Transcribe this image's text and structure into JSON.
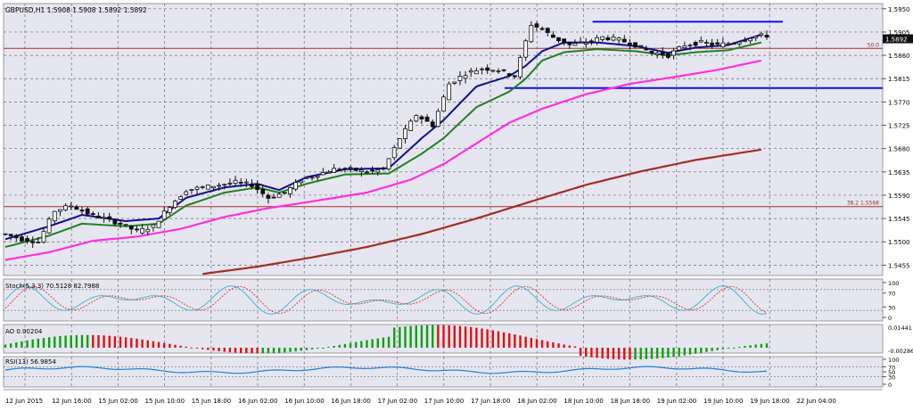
{
  "chart_data": {
    "type": "candlestick",
    "symbol_header": "GBPUSD,H1  1.5908 1.5908 1.5892 1.5892",
    "y_ticks": [
      "1.5950",
      "1.5905",
      "1.5860",
      "1.5815",
      "1.5770",
      "1.5725",
      "1.5680",
      "1.5635",
      "1.5590",
      "1.5545",
      "1.5500",
      "1.5455"
    ],
    "y_range": [
      1.5435,
      1.596
    ],
    "current_price": "1.5892",
    "x_labels": [
      "12 Jun 2015",
      "12 Jun 16:00",
      "15 Jun 02:00",
      "15 Jun 10:00",
      "15 Jun 18:00",
      "16 Jun 02:00",
      "16 Jun 10:00",
      "16 Jun 18:00",
      "17 Jun 02:00",
      "17 Jun 10:00",
      "17 Jun 18:00",
      "18 Jun 02:00",
      "18 Jun 10:00",
      "18 Jun 18:00",
      "19 Jun 02:00",
      "19 Jun 10:00",
      "19 Jun 18:00",
      "22 Jun 04:00"
    ],
    "fib_levels": [
      {
        "label": "50.0",
        "price": 1.58735,
        "color": "#a03030"
      },
      {
        "label": "38.2 1.5568",
        "price": 1.5568,
        "color": "#a03030"
      }
    ],
    "blue_levels": [
      {
        "price": 1.5925,
        "start_frac": 0.67,
        "color": "#1010e0"
      },
      {
        "price": 1.5797,
        "start_frac": 0.57,
        "color": "#1010e0"
      }
    ],
    "candles_trend": [
      [
        0,
        1.5515
      ],
      [
        3,
        1.5505
      ],
      [
        6,
        1.55
      ],
      [
        9,
        1.556
      ],
      [
        12,
        1.557
      ],
      [
        15,
        1.5555
      ],
      [
        18,
        1.5545
      ],
      [
        21,
        1.5535
      ],
      [
        24,
        1.552
      ],
      [
        27,
        1.553
      ],
      [
        30,
        1.557
      ],
      [
        33,
        1.56
      ],
      [
        36,
        1.5605
      ],
      [
        39,
        1.561
      ],
      [
        42,
        1.5615
      ],
      [
        45,
        1.561
      ],
      [
        48,
        1.5585
      ],
      [
        51,
        1.5595
      ],
      [
        54,
        1.562
      ],
      [
        57,
        1.563
      ],
      [
        60,
        1.564
      ],
      [
        63,
        1.564
      ],
      [
        66,
        1.5635
      ],
      [
        69,
        1.564
      ],
      [
        72,
        1.57
      ],
      [
        75,
        1.5745
      ],
      [
        78,
        1.5725
      ],
      [
        81,
        1.5805
      ],
      [
        84,
        1.5825
      ],
      [
        87,
        1.5835
      ],
      [
        90,
        1.5832
      ],
      [
        93,
        1.582
      ],
      [
        96,
        1.592
      ],
      [
        98,
        1.591
      ],
      [
        100,
        1.5895
      ],
      [
        103,
        1.588
      ],
      [
        106,
        1.5885
      ],
      [
        109,
        1.5895
      ],
      [
        112,
        1.589
      ],
      [
        115,
        1.588
      ],
      [
        118,
        1.5865
      ],
      [
        121,
        1.586
      ],
      [
        124,
        1.588
      ],
      [
        127,
        1.5885
      ],
      [
        130,
        1.588
      ],
      [
        133,
        1.5885
      ],
      [
        136,
        1.5895
      ],
      [
        138,
        1.5898
      ]
    ],
    "ema_blue": [
      [
        0,
        1.5505
      ],
      [
        8,
        1.553
      ],
      [
        14,
        1.5552
      ],
      [
        22,
        1.554
      ],
      [
        28,
        1.5545
      ],
      [
        33,
        1.5585
      ],
      [
        40,
        1.5605
      ],
      [
        46,
        1.5612
      ],
      [
        50,
        1.56
      ],
      [
        55,
        1.5625
      ],
      [
        62,
        1.564
      ],
      [
        70,
        1.5642
      ],
      [
        76,
        1.57
      ],
      [
        80,
        1.5735
      ],
      [
        86,
        1.58
      ],
      [
        92,
        1.582
      ],
      [
        95,
        1.584
      ],
      [
        98,
        1.5868
      ],
      [
        102,
        1.5885
      ],
      [
        108,
        1.5885
      ],
      [
        115,
        1.5878
      ],
      [
        121,
        1.5865
      ],
      [
        126,
        1.5875
      ],
      [
        132,
        1.588
      ],
      [
        138,
        1.59
      ]
    ],
    "ema_green": [
      [
        0,
        1.549
      ],
      [
        8,
        1.5512
      ],
      [
        14,
        1.5535
      ],
      [
        22,
        1.553
      ],
      [
        28,
        1.5535
      ],
      [
        33,
        1.557
      ],
      [
        40,
        1.5595
      ],
      [
        46,
        1.5605
      ],
      [
        50,
        1.5595
      ],
      [
        55,
        1.5612
      ],
      [
        62,
        1.563
      ],
      [
        70,
        1.5632
      ],
      [
        76,
        1.567
      ],
      [
        80,
        1.57
      ],
      [
        86,
        1.576
      ],
      [
        92,
        1.579
      ],
      [
        95,
        1.5815
      ],
      [
        98,
        1.585
      ],
      [
        102,
        1.5866
      ],
      [
        108,
        1.5872
      ],
      [
        115,
        1.5868
      ],
      [
        121,
        1.586
      ],
      [
        126,
        1.5866
      ],
      [
        132,
        1.587
      ],
      [
        138,
        1.5885
      ]
    ],
    "ma_magenta": [
      [
        0,
        1.5465
      ],
      [
        8,
        1.548
      ],
      [
        16,
        1.5502
      ],
      [
        24,
        1.551
      ],
      [
        32,
        1.5525
      ],
      [
        40,
        1.5548
      ],
      [
        48,
        1.5565
      ],
      [
        56,
        1.5578
      ],
      [
        66,
        1.5595
      ],
      [
        74,
        1.562
      ],
      [
        80,
        1.565
      ],
      [
        86,
        1.569
      ],
      [
        92,
        1.573
      ],
      [
        98,
        1.5757
      ],
      [
        106,
        1.5785
      ],
      [
        114,
        1.5805
      ],
      [
        122,
        1.5818
      ],
      [
        130,
        1.5832
      ],
      [
        138,
        1.585
      ]
    ],
    "ma_brown": [
      [
        36,
        1.5438
      ],
      [
        46,
        1.5452
      ],
      [
        56,
        1.547
      ],
      [
        66,
        1.549
      ],
      [
        76,
        1.5515
      ],
      [
        86,
        1.5545
      ],
      [
        96,
        1.5578
      ],
      [
        106,
        1.561
      ],
      [
        116,
        1.5636
      ],
      [
        126,
        1.5658
      ],
      [
        138,
        1.5678
      ]
    ],
    "stoch": {
      "label": "Stoch(5,3,3) 70.5128 82.7988",
      "ticks": [
        "100",
        "70",
        "30",
        "0"
      ]
    },
    "ao": {
      "label": "AO 0.00204",
      "ticks": [
        "0.01441",
        "-0.00286"
      ]
    },
    "rsi": {
      "label": "RSI(13) 56.9854",
      "ticks": [
        "100",
        "70",
        "50",
        "30",
        "0"
      ]
    },
    "colors": {
      "candle": "#101010",
      "blue": "#101090",
      "green": "#208020",
      "magenta": "#ff30e0",
      "brown": "#a03020",
      "ao_up": "#10a010",
      "ao_down": "#e01010",
      "stoch_main": "#40b8d0",
      "stoch_signal": "#e04040",
      "rsi": "#2080e0",
      "grid": "#6c6c78",
      "bg": "#e6e6f0"
    }
  }
}
